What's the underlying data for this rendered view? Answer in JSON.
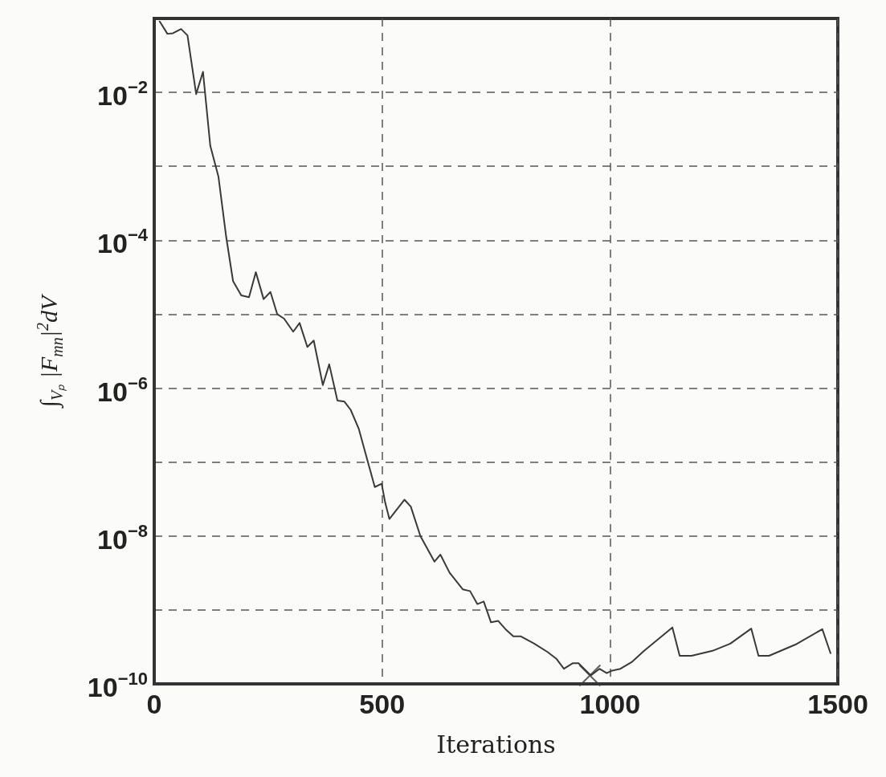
{
  "chart_data": {
    "type": "line",
    "xlabel": "Iterations",
    "ylabel": "∫$_{Vₚ}$ |F$_{mn}$|$^{2}$dV",
    "log": "y",
    "grid": true,
    "marker": "none",
    "line_style": "solid",
    "xlim": [
      0,
      1500
    ],
    "xticks": [
      0,
      500,
      1000,
      1500
    ],
    "ylim": [
      1e-10,
      0.1
    ],
    "yticks": [
      {
        "value": 1e-10,
        "label": "10$^{−10}$"
      },
      {
        "value": 1e-09,
        "label": null
      },
      {
        "value": 1e-08,
        "label": "10$^{−8}$"
      },
      {
        "value": 1e-07,
        "label": null
      },
      {
        "value": 1e-06,
        "label": "10$^{−6}$"
      },
      {
        "value": 1e-05,
        "label": null
      },
      {
        "value": 0.0001,
        "label": "10$^{−4}$"
      },
      {
        "value": 0.001,
        "label": null
      },
      {
        "value": 0.01,
        "label": "10$^{−2}$"
      }
    ],
    "series": [
      {
        "color": "#3a3a3a",
        "x": [
          12,
          29,
          41,
          59,
          73,
          92,
          107,
          123,
          141,
          158,
          173,
          191,
          208,
          223,
          240,
          255,
          270,
          285,
          305,
          319,
          336,
          350,
          370,
          384,
          402,
          417,
          431,
          449,
          467,
          484,
          499,
          507,
          516,
          549,
          563,
          584,
          615,
          628,
          648,
          677,
          693,
          709,
          723,
          739,
          755,
          772,
          788,
          804,
          834,
          863,
          882,
          899,
          918,
          931,
          958,
          977,
          993,
          1003,
          1023,
          1049,
          1075,
          1137,
          1153,
          1179,
          1225,
          1264,
          1310,
          1326,
          1349,
          1407,
          1466,
          1484
        ],
        "values": [
          0.091,
          0.062,
          0.063,
          0.072,
          0.059,
          0.0095,
          0.019,
          0.0019,
          0.00072,
          0.00011,
          2.8e-05,
          1.8e-05,
          1.7e-05,
          3.7e-05,
          1.6e-05,
          2e-05,
          1e-05,
          8.7e-06,
          5.8e-06,
          7.6e-06,
          3.6e-06,
          4.4e-06,
          1.1e-06,
          2.1e-06,
          6.8e-07,
          6.6e-07,
          5.1e-07,
          2.8e-07,
          1.1e-07,
          4.6e-08,
          5.1e-08,
          2.8e-08,
          1.7e-08,
          3.1e-08,
          2.5e-08,
          1e-08,
          4.5e-09,
          5.6e-09,
          3.2e-09,
          1.9e-09,
          1.8e-09,
          1.2e-09,
          1.3e-09,
          6.8e-10,
          7.1e-10,
          5.4e-10,
          4.4e-10,
          4.4e-10,
          3.5e-10,
          2.7e-10,
          2.2e-10,
          1.6e-10,
          1.9e-10,
          1.9e-10,
          1.3e-10,
          1.6e-10,
          1.4e-10,
          1.5e-10,
          1.6e-10,
          2e-10,
          2.8e-10,
          5.8e-10,
          2.4e-10,
          2.4e-10,
          2.8e-10,
          3.5e-10,
          5.6e-10,
          2.4e-10,
          2.4e-10,
          3.4e-10,
          5.5e-10,
          2.6e-10
        ]
      },
      {
        "type": "scatter",
        "marker": "cross",
        "color": "#3a3a3a",
        "x": [
          956
        ],
        "values": [
          1.3e-10
        ]
      }
    ]
  }
}
